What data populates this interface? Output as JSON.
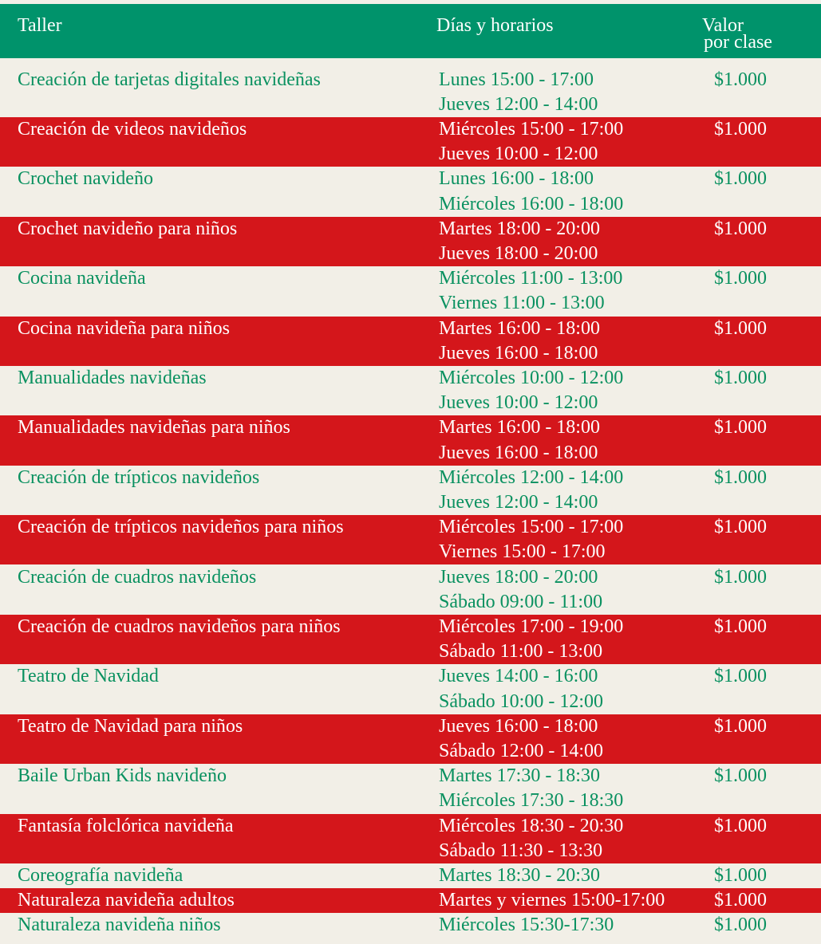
{
  "header": {
    "taller": "Taller",
    "dias": "Días y horarios",
    "valor": [
      "Valor",
      "por clase"
    ]
  },
  "rows": [
    {
      "taller": "Creación de tarjetas digitales navideñas",
      "horarios": [
        "Lunes 15:00 - 17:00",
        "Jueves 12:00 - 14:00"
      ],
      "valor": "$1.000"
    },
    {
      "taller": "Creación de videos navideños",
      "horarios": [
        "Miércoles 15:00 - 17:00",
        "Jueves 10:00 - 12:00"
      ],
      "valor": "$1.000"
    },
    {
      "taller": "Crochet navideño",
      "horarios": [
        "Lunes 16:00 - 18:00",
        "Miércoles 16:00 - 18:00"
      ],
      "valor": "$1.000"
    },
    {
      "taller": "Crochet navideño para niños",
      "horarios": [
        "Martes 18:00 - 20:00",
        "Jueves 18:00 - 20:00"
      ],
      "valor": "$1.000"
    },
    {
      "taller": "Cocina navideña",
      "horarios": [
        "Miércoles 11:00 - 13:00",
        "Viernes 11:00 - 13:00"
      ],
      "valor": "$1.000"
    },
    {
      "taller": "Cocina navideña para niños",
      "horarios": [
        "Martes 16:00 - 18:00",
        "Jueves 16:00 - 18:00"
      ],
      "valor": "$1.000"
    },
    {
      "taller": "Manualidades navideñas",
      "horarios": [
        "Miércoles 10:00 - 12:00",
        "Jueves 10:00 - 12:00"
      ],
      "valor": "$1.000"
    },
    {
      "taller": "Manualidades navideñas para niños",
      "horarios": [
        "Martes 16:00 - 18:00",
        "Jueves 16:00 - 18:00"
      ],
      "valor": "$1.000"
    },
    {
      "taller": "Creación de trípticos navideños",
      "horarios": [
        "Miércoles 12:00 - 14:00",
        "Jueves 12:00 - 14:00"
      ],
      "valor": "$1.000"
    },
    {
      "taller": "Creación de trípticos navideños para niños",
      "horarios": [
        "Miércoles 15:00 - 17:00",
        "Viernes 15:00 - 17:00"
      ],
      "valor": "$1.000"
    },
    {
      "taller": "Creación de cuadros navideños",
      "horarios": [
        "Jueves 18:00 - 20:00",
        "Sábado 09:00 - 11:00"
      ],
      "valor": "$1.000"
    },
    {
      "taller": "Creación de cuadros navideños para niños",
      "horarios": [
        "Miércoles 17:00 - 19:00",
        "Sábado 11:00 - 13:00"
      ],
      "valor": "$1.000"
    },
    {
      "taller": "Teatro de Navidad",
      "horarios": [
        "Jueves 14:00 - 16:00",
        "Sábado 10:00 - 12:00"
      ],
      "valor": "$1.000"
    },
    {
      "taller": "Teatro de Navidad para niños",
      "horarios": [
        "Jueves 16:00 - 18:00",
        "Sábado 12:00 - 14:00"
      ],
      "valor": "$1.000"
    },
    {
      "taller": "Baile Urban Kids navideño",
      "horarios": [
        "Martes 17:30 - 18:30",
        "Miércoles 17:30 - 18:30"
      ],
      "valor": "$1.000"
    },
    {
      "taller": "Fantasía folclórica navideña",
      "horarios": [
        "Miércoles 18:30 - 20:30",
        "Sábado 11:30 - 13:30"
      ],
      "valor": "$1.000"
    },
    {
      "taller": "Coreografía navideña",
      "horarios": [
        "Martes 18:30 - 20:30"
      ],
      "valor": "$1.000"
    },
    {
      "taller": "Naturaleza navideña adultos",
      "horarios": [
        "Martes y viernes 15:00-17:00"
      ],
      "valor": "$1.000"
    },
    {
      "taller": "Naturaleza navideña niños",
      "horarios": [
        "Miércoles 15:30-17:30"
      ],
      "valor": "$1.000"
    }
  ]
}
